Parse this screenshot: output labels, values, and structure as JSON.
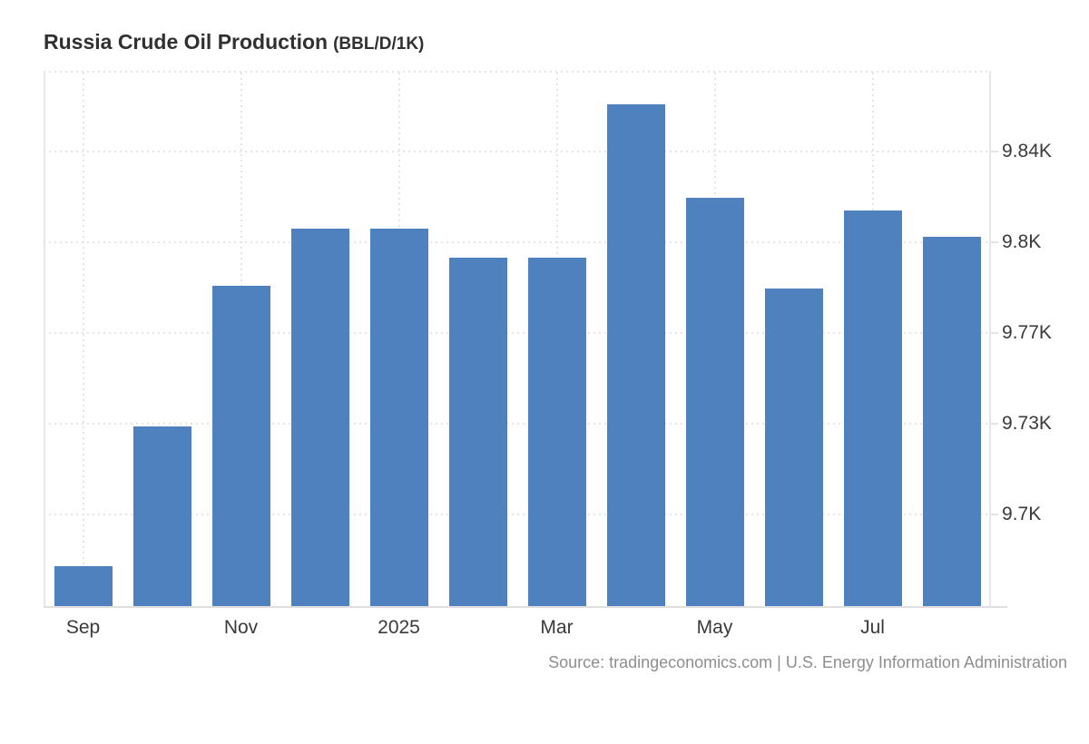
{
  "header": {
    "title_main": "Russia Crude Oil Production",
    "title_unit": "(BBL/D/1K)"
  },
  "footer": {
    "source": "Source: tradingeconomics.com | U.S. Energy Information Administration"
  },
  "colors": {
    "bar": "#4e81bd",
    "grid": "#e4e4e4",
    "frame_border": "#e7e7e7",
    "baseline": "#dfdfdf",
    "title_text": "#303030",
    "tick_text": "#3a3a3a",
    "source_text": "#8e8e8e",
    "background": "#ffffff"
  },
  "chart_data": {
    "type": "bar",
    "title": "Russia Crude Oil Production",
    "unit": "BBL/D/1K",
    "categories": [
      "Sep 2024",
      "Oct 2024",
      "Nov 2024",
      "Dec 2024",
      "Jan 2025",
      "Feb 2025",
      "Mar 2025",
      "Apr 2025",
      "May 2025",
      "Jun 2025",
      "Jul 2025",
      "Aug 2025"
    ],
    "values": [
      9680,
      9734,
      9788,
      9810,
      9810,
      9799,
      9799,
      9858,
      9822,
      9787,
      9817,
      9807
    ],
    "x_ticks": [
      {
        "label": "Sep",
        "slot": 0
      },
      {
        "label": "Nov",
        "slot": 2
      },
      {
        "label": "2025",
        "slot": 4
      },
      {
        "label": "Mar",
        "slot": 6
      },
      {
        "label": "May",
        "slot": 8
      },
      {
        "label": "Jul",
        "slot": 10
      }
    ],
    "y_ticks": [
      {
        "label": "9.84K",
        "value": 9840
      },
      {
        "label": "9.8K",
        "value": 9805
      },
      {
        "label": "9.77K",
        "value": 9770
      },
      {
        "label": "9.73K",
        "value": 9735
      },
      {
        "label": "9.7K",
        "value": 9700
      }
    ],
    "ylim": [
      9664,
      9871
    ],
    "xlabel": "",
    "ylabel": "",
    "grid": "dotted",
    "legend": "none",
    "bar_color": "#4e81bd"
  }
}
